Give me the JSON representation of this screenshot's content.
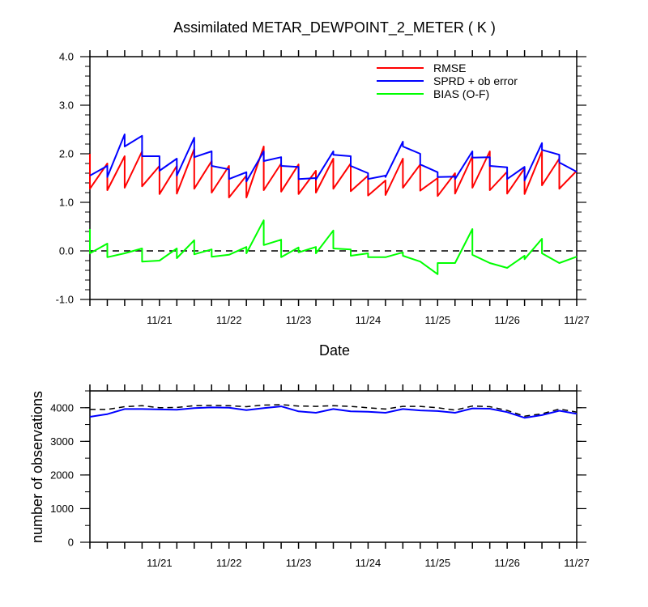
{
  "chart_data": [
    {
      "type": "line",
      "title": "Assimilated METAR_DEWPOINT_2_METER ( K )",
      "xlabel": "Date",
      "ylabel": "",
      "x_ticks": [
        "11/21",
        "11/22",
        "11/23",
        "11/24",
        "11/25",
        "11/26",
        "11/27"
      ],
      "ylim": [
        -1.0,
        4.0
      ],
      "y_ticks": [
        "-1.0",
        "0.0",
        "1.0",
        "2.0",
        "3.0",
        "4.0"
      ],
      "legend_position": "top-right",
      "reference_line": {
        "y": 0.0,
        "style": "dashed"
      },
      "series": [
        {
          "name": "RMSE",
          "color": "#ff0000",
          "points": [
            [
              20.0,
              2.0
            ],
            [
              20.0,
              1.28
            ],
            [
              20.25,
              1.8
            ],
            [
              20.25,
              1.25
            ],
            [
              20.5,
              1.95
            ],
            [
              20.5,
              1.3
            ],
            [
              20.75,
              2.05
            ],
            [
              20.75,
              1.33
            ],
            [
              21.0,
              1.75
            ],
            [
              21.0,
              1.17
            ],
            [
              21.25,
              1.75
            ],
            [
              21.25,
              1.18
            ],
            [
              21.5,
              2.1
            ],
            [
              21.5,
              1.28
            ],
            [
              21.75,
              1.85
            ],
            [
              21.75,
              1.2
            ],
            [
              22.0,
              1.75
            ],
            [
              22.0,
              1.1
            ],
            [
              22.25,
              1.55
            ],
            [
              22.25,
              1.1
            ],
            [
              22.5,
              2.15
            ],
            [
              22.5,
              1.25
            ],
            [
              22.75,
              1.8
            ],
            [
              22.75,
              1.22
            ],
            [
              23.0,
              1.78
            ],
            [
              23.0,
              1.17
            ],
            [
              23.25,
              1.65
            ],
            [
              23.25,
              1.2
            ],
            [
              23.5,
              1.9
            ],
            [
              23.5,
              1.28
            ],
            [
              23.75,
              1.8
            ],
            [
              23.75,
              1.23
            ],
            [
              24.0,
              1.55
            ],
            [
              24.0,
              1.14
            ],
            [
              24.25,
              1.45
            ],
            [
              24.25,
              1.15
            ],
            [
              24.5,
              1.9
            ],
            [
              24.5,
              1.3
            ],
            [
              24.75,
              1.78
            ],
            [
              24.75,
              1.24
            ],
            [
              25.0,
              1.5
            ],
            [
              25.0,
              1.13
            ],
            [
              25.25,
              1.6
            ],
            [
              25.25,
              1.18
            ],
            [
              25.5,
              1.95
            ],
            [
              25.5,
              1.3
            ],
            [
              25.75,
              2.05
            ],
            [
              25.75,
              1.25
            ],
            [
              26.0,
              1.63
            ],
            [
              26.0,
              1.18
            ],
            [
              26.25,
              1.7
            ],
            [
              26.25,
              1.17
            ],
            [
              26.5,
              2.05
            ],
            [
              26.5,
              1.35
            ],
            [
              26.75,
              1.9
            ],
            [
              26.75,
              1.28
            ],
            [
              27.0,
              1.65
            ]
          ]
        },
        {
          "name": "SPRD + ob error",
          "color": "#0000ff",
          "points": [
            [
              20.0,
              1.55
            ],
            [
              20.25,
              1.75
            ],
            [
              20.25,
              1.52
            ],
            [
              20.5,
              2.4
            ],
            [
              20.5,
              2.15
            ],
            [
              20.75,
              2.37
            ],
            [
              20.75,
              1.95
            ],
            [
              21.0,
              1.95
            ],
            [
              21.0,
              1.65
            ],
            [
              21.25,
              1.9
            ],
            [
              21.25,
              1.55
            ],
            [
              21.5,
              2.33
            ],
            [
              21.5,
              1.93
            ],
            [
              21.75,
              2.05
            ],
            [
              21.75,
              1.75
            ],
            [
              22.0,
              1.68
            ],
            [
              22.0,
              1.48
            ],
            [
              22.25,
              1.62
            ],
            [
              22.25,
              1.43
            ],
            [
              22.5,
              2.05
            ],
            [
              22.5,
              1.85
            ],
            [
              22.75,
              1.93
            ],
            [
              22.75,
              1.75
            ],
            [
              23.0,
              1.73
            ],
            [
              23.0,
              1.48
            ],
            [
              23.25,
              1.5
            ],
            [
              23.25,
              1.47
            ],
            [
              23.5,
              2.05
            ],
            [
              23.5,
              1.98
            ],
            [
              23.75,
              1.95
            ],
            [
              23.75,
              1.75
            ],
            [
              24.0,
              1.6
            ],
            [
              24.0,
              1.48
            ],
            [
              24.25,
              1.55
            ],
            [
              24.25,
              1.52
            ],
            [
              24.5,
              2.25
            ],
            [
              24.5,
              2.15
            ],
            [
              24.75,
              2.0
            ],
            [
              24.75,
              1.78
            ],
            [
              25.0,
              1.62
            ],
            [
              25.0,
              1.52
            ],
            [
              25.25,
              1.53
            ],
            [
              25.25,
              1.48
            ],
            [
              25.5,
              2.05
            ],
            [
              25.5,
              1.92
            ],
            [
              25.75,
              1.93
            ],
            [
              25.75,
              1.75
            ],
            [
              26.0,
              1.72
            ],
            [
              26.0,
              1.48
            ],
            [
              26.25,
              1.73
            ],
            [
              26.25,
              1.45
            ],
            [
              26.5,
              2.22
            ],
            [
              26.5,
              2.08
            ],
            [
              26.75,
              1.98
            ],
            [
              26.75,
              1.82
            ],
            [
              27.0,
              1.63
            ]
          ]
        },
        {
          "name": "BIAS (O-F)",
          "color": "#00ff00",
          "points": [
            [
              20.0,
              0.45
            ],
            [
              20.0,
              -0.05
            ],
            [
              20.25,
              0.15
            ],
            [
              20.25,
              -0.13
            ],
            [
              20.5,
              -0.05
            ],
            [
              20.75,
              0.05
            ],
            [
              20.75,
              -0.22
            ],
            [
              21.0,
              -0.2
            ],
            [
              21.25,
              0.05
            ],
            [
              21.25,
              -0.15
            ],
            [
              21.5,
              0.22
            ],
            [
              21.5,
              -0.07
            ],
            [
              21.75,
              0.03
            ],
            [
              21.75,
              -0.12
            ],
            [
              22.0,
              -0.08
            ],
            [
              22.25,
              0.08
            ],
            [
              22.25,
              -0.05
            ],
            [
              22.5,
              0.63
            ],
            [
              22.5,
              0.12
            ],
            [
              22.75,
              0.23
            ],
            [
              22.75,
              -0.13
            ],
            [
              23.0,
              0.07
            ],
            [
              23.0,
              -0.03
            ],
            [
              23.25,
              0.08
            ],
            [
              23.25,
              -0.05
            ],
            [
              23.5,
              0.42
            ],
            [
              23.5,
              0.05
            ],
            [
              23.75,
              0.03
            ],
            [
              23.75,
              -0.1
            ],
            [
              24.0,
              -0.05
            ],
            [
              24.0,
              -0.13
            ],
            [
              24.25,
              -0.13
            ],
            [
              24.5,
              -0.03
            ],
            [
              24.5,
              -0.1
            ],
            [
              24.75,
              -0.22
            ],
            [
              25.0,
              -0.48
            ],
            [
              25.0,
              -0.25
            ],
            [
              25.25,
              -0.25
            ],
            [
              25.5,
              0.45
            ],
            [
              25.5,
              -0.08
            ],
            [
              25.75,
              -0.25
            ],
            [
              26.0,
              -0.35
            ],
            [
              26.25,
              -0.1
            ],
            [
              26.25,
              -0.17
            ],
            [
              26.5,
              0.25
            ],
            [
              26.5,
              -0.05
            ],
            [
              26.75,
              -0.25
            ],
            [
              27.0,
              -0.12
            ]
          ]
        }
      ]
    },
    {
      "type": "line",
      "title": "",
      "xlabel": "",
      "ylabel": "number of observations",
      "x_ticks": [
        "11/21",
        "11/22",
        "11/23",
        "11/24",
        "11/25",
        "11/26",
        "11/27"
      ],
      "ylim": [
        0,
        4500
      ],
      "y_ticks": [
        "0",
        "1000",
        "2000",
        "3000",
        "4000"
      ],
      "series": [
        {
          "color": "#000000",
          "style": "dashed",
          "points": [
            [
              20.0,
              3950
            ],
            [
              20.25,
              3950
            ],
            [
              20.5,
              4030
            ],
            [
              20.75,
              4060
            ],
            [
              21.0,
              4000
            ],
            [
              21.25,
              4010
            ],
            [
              21.5,
              4060
            ],
            [
              21.75,
              4070
            ],
            [
              22.0,
              4060
            ],
            [
              22.25,
              4030
            ],
            [
              22.5,
              4080
            ],
            [
              22.75,
              4090
            ],
            [
              23.0,
              4050
            ],
            [
              23.25,
              4040
            ],
            [
              23.5,
              4060
            ],
            [
              23.75,
              4040
            ],
            [
              24.0,
              4000
            ],
            [
              24.25,
              3960
            ],
            [
              24.5,
              4040
            ],
            [
              24.75,
              4040
            ],
            [
              25.0,
              4000
            ],
            [
              25.25,
              3930
            ],
            [
              25.5,
              4050
            ],
            [
              25.75,
              4030
            ],
            [
              26.0,
              3920
            ],
            [
              26.25,
              3750
            ],
            [
              26.5,
              3820
            ],
            [
              26.75,
              3960
            ],
            [
              27.0,
              3870
            ]
          ]
        },
        {
          "color": "#0000ff",
          "style": "solid",
          "points": [
            [
              20.0,
              3730
            ],
            [
              20.25,
              3810
            ],
            [
              20.5,
              3960
            ],
            [
              20.75,
              3960
            ],
            [
              21.0,
              3950
            ],
            [
              21.25,
              3940
            ],
            [
              21.5,
              3990
            ],
            [
              21.75,
              4010
            ],
            [
              22.0,
              4000
            ],
            [
              22.25,
              3930
            ],
            [
              22.5,
              3990
            ],
            [
              22.75,
              4040
            ],
            [
              23.0,
              3890
            ],
            [
              23.25,
              3850
            ],
            [
              23.5,
              3960
            ],
            [
              23.75,
              3890
            ],
            [
              24.0,
              3880
            ],
            [
              24.25,
              3850
            ],
            [
              24.5,
              3960
            ],
            [
              24.75,
              3920
            ],
            [
              25.0,
              3900
            ],
            [
              25.25,
              3850
            ],
            [
              25.5,
              3980
            ],
            [
              25.75,
              3970
            ],
            [
              26.0,
              3870
            ],
            [
              26.25,
              3700
            ],
            [
              26.5,
              3780
            ],
            [
              26.75,
              3910
            ],
            [
              27.0,
              3820
            ]
          ]
        }
      ]
    }
  ]
}
